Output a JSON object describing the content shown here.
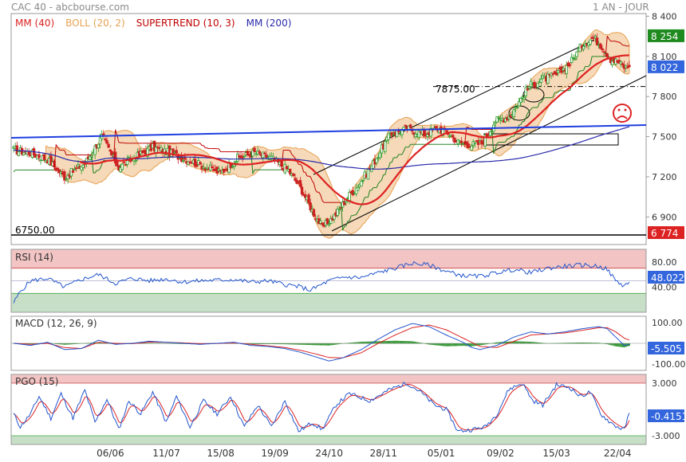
{
  "header": {
    "title": "CAC 40 - abcbourse.com",
    "period": "1 AN - JOUR"
  },
  "colors": {
    "panel_border": "#9a9a9a",
    "candle_up": "#2a9a2a",
    "candle_down": "#cc2222",
    "mm40": "#dd2222",
    "boll_fill": "#f5d9b8",
    "boll_line": "#e8a050",
    "supertrend_up": "#208020",
    "supertrend_down": "#c00000",
    "mm200": "#2a2aaa",
    "trend_blue": "#1e3ee0",
    "rsi_line": "#2255cc",
    "macd_line": "#2255cc",
    "macd_signal": "#dd2222",
    "macd_hist": "#3a9a3a",
    "overbought_fill": "#f2c4c4",
    "oversold_fill": "#c6dfc6",
    "badge_green": "#1f8a1f",
    "badge_blue": "#3366dd",
    "badge_red": "#dd2222"
  },
  "icons": {
    "sad_face": "sad-face-icon"
  },
  "chart_data": [
    {
      "type": "candlestick",
      "name": "price",
      "legend": [
        {
          "label": "MM (40)",
          "color": "#dd2222"
        },
        {
          "label": "BOLL (20, 2)",
          "color": "#e8a050"
        },
        {
          "label": "SUPERTREND (10, 3)",
          "color": "#c00000"
        },
        {
          "label": "MM (200)",
          "color": "#2a2aaa"
        }
      ],
      "x_labels": [
        "06/06",
        "11/07",
        "15/08",
        "19/09",
        "24/10",
        "28/11",
        "05/01",
        "09/02",
        "15/03",
        "22/04"
      ],
      "y_ticks": [
        "8 400",
        "8 100",
        "7 800",
        "7 500",
        "7 200",
        "6 900"
      ],
      "ylim": [
        6700,
        8420
      ],
      "close_key_points": [
        [
          0,
          7400
        ],
        [
          10,
          7380
        ],
        [
          20,
          7330
        ],
        [
          30,
          7200
        ],
        [
          42,
          7300
        ],
        [
          52,
          7500
        ],
        [
          62,
          7270
        ],
        [
          72,
          7350
        ],
        [
          82,
          7420
        ],
        [
          92,
          7380
        ],
        [
          102,
          7330
        ],
        [
          112,
          7280
        ],
        [
          122,
          7230
        ],
        [
          132,
          7340
        ],
        [
          142,
          7380
        ],
        [
          152,
          7340
        ],
        [
          162,
          7250
        ],
        [
          170,
          7100
        ],
        [
          176,
          6950
        ],
        [
          182,
          6820
        ],
        [
          190,
          6920
        ],
        [
          197,
          7050
        ],
        [
          204,
          7150
        ],
        [
          212,
          7300
        ],
        [
          222,
          7520
        ],
        [
          232,
          7560
        ],
        [
          242,
          7520
        ],
        [
          250,
          7560
        ],
        [
          256,
          7530
        ],
        [
          262,
          7460
        ],
        [
          270,
          7440
        ],
        [
          276,
          7450
        ],
        [
          284,
          7620
        ],
        [
          292,
          7650
        ],
        [
          296,
          7720
        ],
        [
          304,
          7880
        ],
        [
          312,
          7930
        ],
        [
          320,
          7960
        ],
        [
          328,
          8050
        ],
        [
          336,
          8200
        ],
        [
          342,
          8240
        ],
        [
          348,
          8160
        ],
        [
          352,
          8080
        ],
        [
          356,
          8060
        ],
        [
          360,
          8020
        ],
        [
          363,
          8022
        ]
      ],
      "bars": 364,
      "annotations": [
        {
          "text": "7875.00",
          "value": 7875
        },
        {
          "text": "6750.00",
          "value": 6750
        }
      ],
      "value_badges": [
        {
          "text": "8 254",
          "color": "#1f8a1f"
        },
        {
          "text": "8 022",
          "color": "#3366dd"
        },
        {
          "text": "6 774",
          "color": "#dd2222"
        }
      ]
    },
    {
      "type": "line",
      "name": "rsi",
      "legend_label": "RSI (14)",
      "y_ticks": [
        "80.00",
        "40.00"
      ],
      "ylim": [
        0,
        100
      ],
      "overbought": 70,
      "oversold": 30,
      "reference": 50,
      "key_points": [
        [
          0,
          15
        ],
        [
          4,
          33
        ],
        [
          10,
          50
        ],
        [
          20,
          54
        ],
        [
          30,
          40
        ],
        [
          40,
          52
        ],
        [
          50,
          60
        ],
        [
          60,
          46
        ],
        [
          70,
          54
        ],
        [
          80,
          50
        ],
        [
          90,
          53
        ],
        [
          100,
          48
        ],
        [
          110,
          50
        ],
        [
          120,
          51
        ],
        [
          130,
          52
        ],
        [
          140,
          48
        ],
        [
          150,
          50
        ],
        [
          160,
          44
        ],
        [
          168,
          41
        ],
        [
          175,
          35
        ],
        [
          180,
          42
        ],
        [
          186,
          50
        ],
        [
          195,
          56
        ],
        [
          205,
          55
        ],
        [
          215,
          63
        ],
        [
          225,
          70
        ],
        [
          235,
          78
        ],
        [
          245,
          75
        ],
        [
          255,
          65
        ],
        [
          265,
          58
        ],
        [
          275,
          57
        ],
        [
          285,
          63
        ],
        [
          295,
          68
        ],
        [
          305,
          63
        ],
        [
          315,
          70
        ],
        [
          325,
          73
        ],
        [
          335,
          75
        ],
        [
          345,
          73
        ],
        [
          350,
          68
        ],
        [
          355,
          50
        ],
        [
          360,
          42
        ],
        [
          363,
          48
        ]
      ],
      "value_badge": "48.022"
    },
    {
      "type": "line",
      "name": "macd",
      "legend_label": "MACD (12, 26, 9)",
      "y_ticks": [
        "100.00",
        "-100.00"
      ],
      "ylim": [
        -130,
        130
      ],
      "macd_key_points": [
        [
          0,
          0
        ],
        [
          10,
          -10
        ],
        [
          20,
          5
        ],
        [
          30,
          -30
        ],
        [
          40,
          -25
        ],
        [
          50,
          15
        ],
        [
          60,
          -5
        ],
        [
          70,
          0
        ],
        [
          80,
          10
        ],
        [
          90,
          5
        ],
        [
          100,
          0
        ],
        [
          110,
          -5
        ],
        [
          120,
          0
        ],
        [
          130,
          5
        ],
        [
          140,
          -10
        ],
        [
          150,
          -15
        ],
        [
          160,
          -25
        ],
        [
          170,
          -45
        ],
        [
          180,
          -70
        ],
        [
          186,
          -85
        ],
        [
          194,
          -70
        ],
        [
          205,
          -30
        ],
        [
          215,
          20
        ],
        [
          225,
          65
        ],
        [
          235,
          95
        ],
        [
          245,
          80
        ],
        [
          255,
          40
        ],
        [
          265,
          5
        ],
        [
          270,
          -20
        ],
        [
          275,
          -30
        ],
        [
          285,
          -10
        ],
        [
          295,
          30
        ],
        [
          305,
          55
        ],
        [
          315,
          45
        ],
        [
          325,
          55
        ],
        [
          335,
          70
        ],
        [
          345,
          80
        ],
        [
          350,
          70
        ],
        [
          355,
          30
        ],
        [
          360,
          -10
        ],
        [
          363,
          -5.505
        ]
      ],
      "signal_key_points": [
        [
          0,
          0
        ],
        [
          10,
          -5
        ],
        [
          20,
          0
        ],
        [
          30,
          -20
        ],
        [
          40,
          -25
        ],
        [
          50,
          5
        ],
        [
          60,
          0
        ],
        [
          70,
          -2
        ],
        [
          80,
          6
        ],
        [
          90,
          5
        ],
        [
          100,
          2
        ],
        [
          110,
          -2
        ],
        [
          120,
          -1
        ],
        [
          130,
          2
        ],
        [
          140,
          -5
        ],
        [
          150,
          -12
        ],
        [
          160,
          -20
        ],
        [
          170,
          -35
        ],
        [
          180,
          -55
        ],
        [
          186,
          -68
        ],
        [
          194,
          -70
        ],
        [
          205,
          -45
        ],
        [
          215,
          0
        ],
        [
          225,
          40
        ],
        [
          235,
          75
        ],
        [
          245,
          88
        ],
        [
          255,
          65
        ],
        [
          265,
          25
        ],
        [
          275,
          -15
        ],
        [
          285,
          -20
        ],
        [
          295,
          10
        ],
        [
          305,
          40
        ],
        [
          315,
          45
        ],
        [
          325,
          50
        ],
        [
          335,
          62
        ],
        [
          345,
          75
        ],
        [
          350,
          75
        ],
        [
          355,
          55
        ],
        [
          360,
          25
        ],
        [
          363,
          15
        ]
      ],
      "value_badge": "-5.505"
    },
    {
      "type": "line",
      "name": "pgo",
      "legend_label": "PGO (15)",
      "y_ticks": [
        "3.000",
        "-3.000"
      ],
      "ylim": [
        -4,
        4
      ],
      "overbought": 3,
      "oversold": -3,
      "key_points": [
        [
          0,
          -0.5
        ],
        [
          4,
          -2.0
        ],
        [
          10,
          -0.5
        ],
        [
          15,
          1.5
        ],
        [
          22,
          -1
        ],
        [
          28,
          1.8
        ],
        [
          35,
          -1
        ],
        [
          42,
          2.2
        ],
        [
          48,
          -1.5
        ],
        [
          55,
          1.2
        ],
        [
          62,
          -2.3
        ],
        [
          68,
          1.0
        ],
        [
          75,
          -0.5
        ],
        [
          82,
          2.0
        ],
        [
          90,
          -1.5
        ],
        [
          96,
          1.5
        ],
        [
          104,
          -2.0
        ],
        [
          112,
          1.0
        ],
        [
          120,
          -0.5
        ],
        [
          128,
          1.5
        ],
        [
          136,
          -2.0
        ],
        [
          144,
          0.5
        ],
        [
          152,
          -2.0
        ],
        [
          160,
          1.0
        ],
        [
          168,
          -2.5
        ],
        [
          176,
          -1.5
        ],
        [
          182,
          -2.3
        ],
        [
          190,
          0.5
        ],
        [
          198,
          1.8
        ],
        [
          210,
          1.0
        ],
        [
          222,
          2.3
        ],
        [
          232,
          3.0
        ],
        [
          240,
          2.0
        ],
        [
          248,
          0.5
        ],
        [
          255,
          0.0
        ],
        [
          262,
          -2.5
        ],
        [
          270,
          -2.3
        ],
        [
          278,
          -2.0
        ],
        [
          285,
          -0.5
        ],
        [
          292,
          2.3
        ],
        [
          300,
          3.0
        ],
        [
          306,
          1.0
        ],
        [
          312,
          0.5
        ],
        [
          320,
          2.8
        ],
        [
          328,
          2.5
        ],
        [
          334,
          1.5
        ],
        [
          340,
          2.0
        ],
        [
          346,
          -0.5
        ],
        [
          352,
          -1.5
        ],
        [
          356,
          -2.0
        ],
        [
          360,
          -2.3
        ],
        [
          363,
          -0.4151
        ]
      ],
      "value_badge": "-0.4151"
    }
  ]
}
